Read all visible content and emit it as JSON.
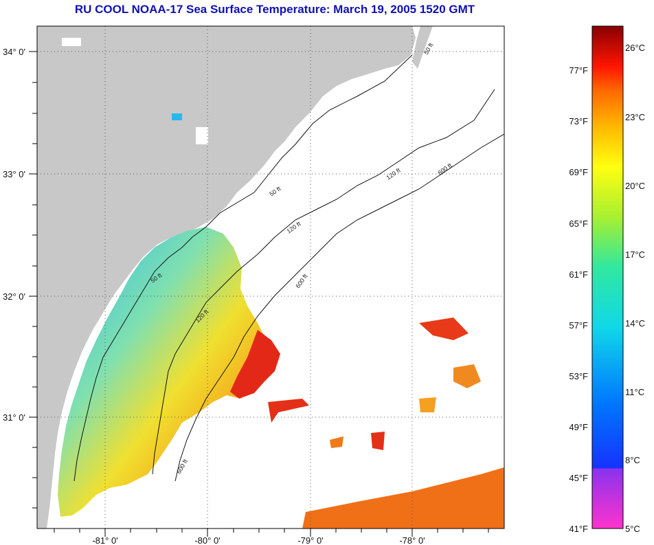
{
  "title": "RU COOL  NOAA-17  Sea Surface Temperature:  March 19, 2005 1520 GMT",
  "map": {
    "lat_labels": [
      "34° 0'",
      "33° 0'",
      "32° 0'",
      "31° 0'"
    ],
    "lon_labels": [
      "-81° 0'",
      "-80° 0'",
      "-79° 0'",
      "-78° 0'"
    ],
    "contours": [
      "50 ft",
      "120 ft",
      "600 ft"
    ],
    "colors": {
      "land": "#c8c8c8",
      "ocean": "#ffffff",
      "gridline": "#555555"
    }
  },
  "colorbar": {
    "fahrenheit": [
      "77°F",
      "73°F",
      "69°F",
      "65°F",
      "61°F",
      "57°F",
      "53°F",
      "49°F",
      "45°F",
      "41°F"
    ],
    "celsius": [
      "26°C",
      "23°C",
      "20°C",
      "17°C",
      "14°C",
      "11°C",
      "8°C",
      "5°C"
    ]
  }
}
